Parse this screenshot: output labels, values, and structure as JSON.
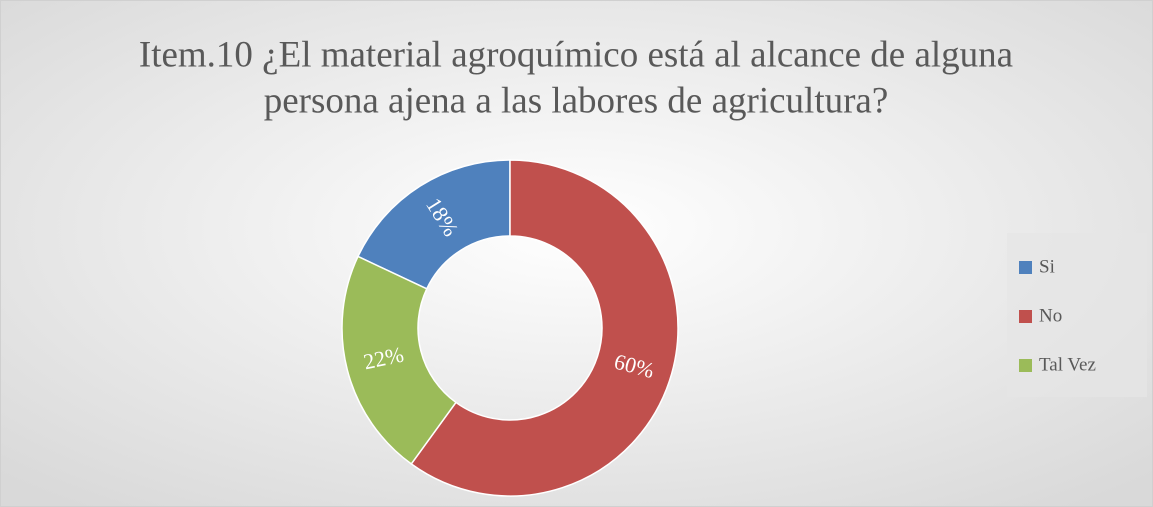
{
  "chart_data": {
    "type": "donut",
    "title": [
      "Item.10 ¿El material agroquímico está al alcance de alguna",
      "persona ajena a las labores de agricultura?"
    ],
    "categories": [
      "Si",
      "No",
      "Tal Vez"
    ],
    "values": [
      18,
      60,
      22
    ],
    "value_labels": [
      "18%",
      "60%",
      "22%"
    ],
    "colors": [
      "#4f81bd",
      "#c0504d",
      "#9bbb59"
    ],
    "legend": "right"
  }
}
